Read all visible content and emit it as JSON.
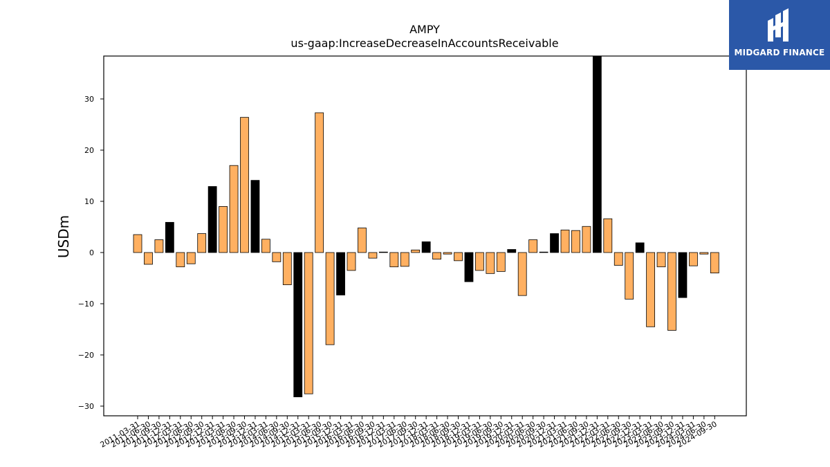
{
  "brand": {
    "name": "MIDGARD FINANCE",
    "bg_color": "#2b58a8"
  },
  "chart_data": {
    "type": "bar",
    "title": "AMPY",
    "subtitle": "us-gaap:IncreaseDecreaseInAccountsReceivable",
    "ylabel": "USDm",
    "xlabel": "",
    "ylim": [
      -32,
      38.5
    ],
    "yticks": [
      -30,
      -20,
      -10,
      0,
      10,
      20,
      30
    ],
    "bar_color": "#ffb061",
    "highlight_color": "#000000",
    "categories": [
      "2011-03-31",
      "2011-06-30",
      "2011-09-30",
      "2011-12-31",
      "2012-03-31",
      "2012-06-30",
      "2012-09-30",
      "2012-12-31",
      "2013-03-31",
      "2013-06-30",
      "2013-09-30",
      "2013-12-31",
      "2014-03-31",
      "2014-06-30",
      "2014-09-30",
      "2014-12-31",
      "2015-03-31",
      "2015-06-30",
      "2015-09-30",
      "2015-12-31",
      "2016-03-31",
      "2016-06-30",
      "2016-09-30",
      "2016-12-31",
      "2017-03-31",
      "2017-06-30",
      "2017-09-30",
      "2017-12-31",
      "2018-03-31",
      "2018-06-30",
      "2018-09-30",
      "2018-12-31",
      "2019-03-31",
      "2019-06-30",
      "2019-09-30",
      "2019-12-31",
      "2020-03-31",
      "2020-06-30",
      "2020-09-30",
      "2020-12-31",
      "2021-03-31",
      "2021-06-30",
      "2021-09-30",
      "2021-12-31",
      "2022-03-31",
      "2022-06-30",
      "2022-09-30",
      "2022-12-31",
      "2023-03-31",
      "2023-06-30",
      "2023-09-30",
      "2023-12-31",
      "2024-03-31",
      "2024-06-30",
      "2024-09-30"
    ],
    "xtick_labels": [
      "2011-03-31",
      "2011-06-30",
      "2011-09-30",
      "2011-12-31",
      "2012-03-31",
      "2012-06-30",
      "2012-09-30",
      "2012-12-31",
      "2013-03-31",
      "2013-06-30",
      "2013-09-30",
      "2013-12-31",
      "2014-03-31",
      "2014-06-30",
      "2014-09-30",
      "2014-12-31",
      "2015-03-31",
      "2015-06-30",
      "2015-09-30",
      "2015-12-31",
      "2016-03-31",
      "2016-06-30",
      "2016-09-30",
      "2016-12-31",
      "2017-03-31",
      "2017-06-30",
      "2017-09-30",
      "2017-12-31",
      "2018-03-31",
      "2018-06-30",
      "2018-09-30",
      "2018-12-31",
      "2019-03-31",
      "2019-06-30",
      "2019-09-30",
      "2019-12-31",
      "2020-03-31",
      "2020-06-30",
      "2020-09-30",
      "2020-12-31",
      "2021-03-31",
      "2021-06-30",
      "2021-09-30",
      "2021-12-31",
      "2022-03-31",
      "2022-06-30",
      "2022-09-30",
      "2022-12-31",
      "2023-03-31",
      "2023-06-30",
      "2023-09-30",
      "2023-12-31",
      "2024-03-31",
      "2024-06-30",
      "2024-09-30"
    ],
    "values": [
      3.5,
      -2.3,
      2.5,
      5.9,
      -2.8,
      -2.2,
      3.7,
      12.9,
      9.0,
      17.0,
      26.4,
      14.1,
      2.6,
      -1.8,
      -6.3,
      -28.2,
      -27.6,
      27.3,
      -18.0,
      -8.3,
      -3.5,
      4.8,
      -1.1,
      0.1,
      -2.8,
      -2.7,
      0.5,
      2.1,
      -1.3,
      -0.3,
      -1.6,
      -5.7,
      -3.5,
      -4.1,
      -3.7,
      0.6,
      -8.4,
      2.5,
      0.1,
      3.7,
      4.4,
      4.3,
      5.1,
      38.5,
      6.6,
      -2.5,
      -9.1,
      1.9,
      -14.5,
      -2.8,
      -15.2,
      -8.8,
      -2.6,
      -0.3,
      -4.0
    ],
    "highlight": [
      false,
      false,
      false,
      true,
      false,
      false,
      false,
      true,
      false,
      false,
      false,
      true,
      false,
      false,
      false,
      true,
      false,
      false,
      false,
      true,
      false,
      false,
      false,
      true,
      false,
      false,
      false,
      true,
      false,
      false,
      false,
      true,
      false,
      false,
      false,
      true,
      false,
      false,
      false,
      true,
      false,
      false,
      false,
      true,
      false,
      false,
      false,
      true,
      false,
      false,
      false,
      true,
      false,
      false,
      false
    ],
    "grid": false,
    "legend": "none"
  }
}
